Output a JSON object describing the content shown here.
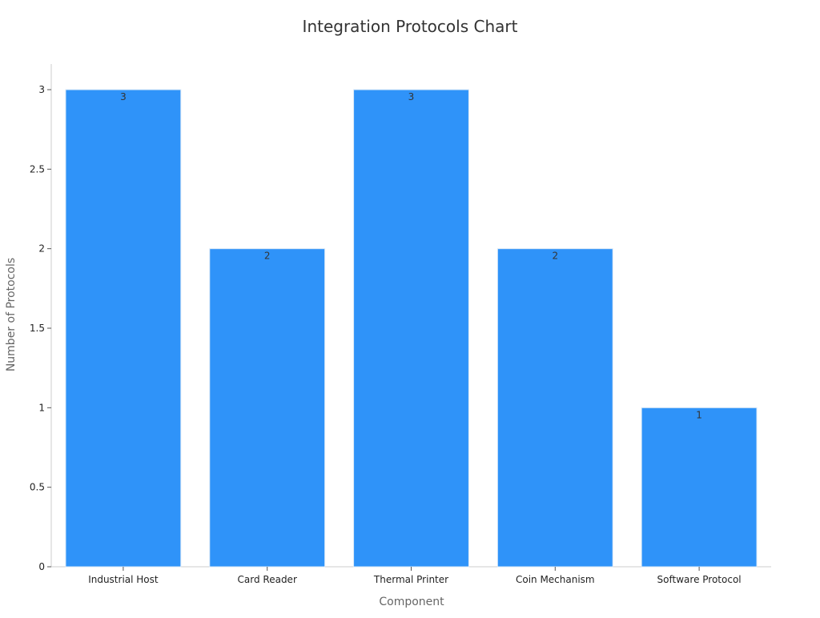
{
  "chart_data": {
    "type": "bar",
    "title": "Integration Protocols Chart",
    "xlabel": "Component",
    "ylabel": "Number of Protocols",
    "categories": [
      "Industrial Host",
      "Card Reader",
      "Thermal Printer",
      "Coin Mechanism",
      "Software Protocol"
    ],
    "values": [
      3,
      2,
      3,
      2,
      1
    ],
    "data_labels": [
      "3",
      "2",
      "3",
      "2",
      "1"
    ],
    "ylim": [
      0,
      3
    ],
    "yticks": [
      0,
      0.5,
      1,
      1.5,
      2,
      2.5,
      3
    ],
    "ytick_labels": [
      "0",
      "0.5",
      "1",
      "1.5",
      "2",
      "2.5",
      "3"
    ],
    "grid": false,
    "legend": "none"
  },
  "colors": {
    "bar": "#2f93f9",
    "background": "#ffffff"
  }
}
